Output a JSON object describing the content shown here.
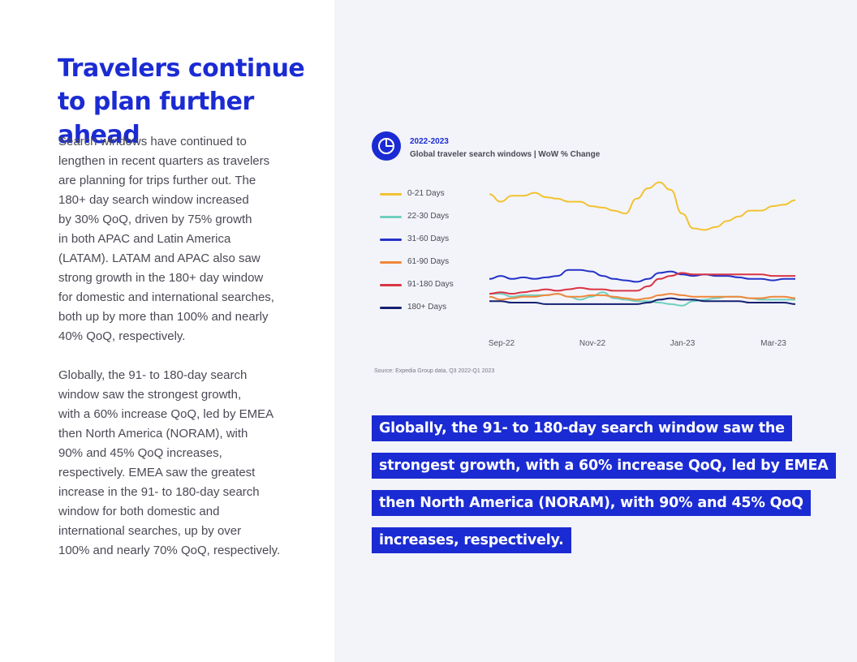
{
  "page": {
    "title": "Travelers continue to plan further ahead",
    "paragraph1": "Search windows have continued to\nlengthen in recent quarters as travelers\nare planning for trips further out. The\n180+ day search window increased\nby 30% QoQ, driven by 75% growth\nin both APAC and Latin America\n(LATAM). LATAM and APAC also saw\nstrong growth in the 180+ day window\nfor domestic and international searches,\nboth up by more than 100% and nearly\n40% QoQ, respectively.",
    "paragraph2": "Globally, the 91- to 180-day search\nwindow saw the strongest growth,\nwith a 60% increase QoQ, led by EMEA\nthen North America (NORAM), with\n90% and 45% QoQ increases,\nrespectively. EMEA saw the greatest\nincrease in the 91- to 180-day search\nwindow for both domestic and\ninternational searches, up by over\n100% and nearly 70% QoQ, respectively.",
    "callout_lines": [
      "Globally, the 91- to 180-day search window saw the",
      "strongest growth, with a 60% increase QoQ, led by EMEA",
      "then North America (NORAM), with 90% and 45% QoQ",
      "increases, respectively."
    ],
    "source": "Source: Expedia Group data, Q3 2022-Q1 2023",
    "icon": "pie-chart-icon",
    "accent_color": "#1b2bd3"
  },
  "chart_data": {
    "type": "line",
    "title": "2022-2023",
    "subtitle": "Global traveler search windows | WoW % Change",
    "x_tick_labels": [
      "Sep-22",
      "Nov-22",
      "Jan-23",
      "Mar-23"
    ],
    "legend_position": "left",
    "grid": false,
    "ylim": [
      0,
      100
    ],
    "series": [
      {
        "name": "0-21 Days",
        "color": "#f2c233",
        "values": [
          85,
          80,
          84,
          84,
          86,
          83,
          82,
          80,
          80,
          77,
          76,
          74,
          72,
          82,
          89,
          93,
          88,
          72,
          62,
          61,
          63,
          67,
          70,
          74,
          74,
          77,
          78,
          81
        ]
      },
      {
        "name": "22-30 Days",
        "color": "#71cfc0",
        "values": [
          18,
          18,
          16,
          17,
          17,
          17,
          18,
          16,
          14,
          16,
          19,
          15,
          14,
          13,
          13,
          12,
          11,
          10,
          13,
          14,
          15,
          16,
          16,
          15,
          14,
          14,
          14,
          14
        ]
      },
      {
        "name": "31-60 Days",
        "color": "#2533c9",
        "values": [
          28,
          30,
          28,
          29,
          28,
          29,
          30,
          34,
          34,
          33,
          30,
          28,
          27,
          26,
          28,
          32,
          33,
          31,
          30,
          31,
          30,
          30,
          29,
          28,
          28,
          27,
          28,
          28
        ]
      },
      {
        "name": "61-90 Days",
        "color": "#f0873a",
        "values": [
          16,
          14,
          15,
          16,
          16,
          17,
          18,
          16,
          16,
          17,
          17,
          16,
          15,
          14,
          15,
          17,
          18,
          17,
          16,
          16,
          16,
          16,
          16,
          15,
          15,
          16,
          16,
          15
        ]
      },
      {
        "name": "91-180 Days",
        "color": "#d93545",
        "values": [
          18,
          19,
          18,
          19,
          20,
          21,
          20,
          21,
          22,
          21,
          21,
          20,
          20,
          20,
          23,
          28,
          30,
          32,
          31,
          31,
          31,
          31,
          31,
          31,
          31,
          30,
          30,
          30
        ]
      },
      {
        "name": "180+ Days",
        "color": "#142171",
        "values": [
          13,
          13,
          12,
          12,
          12,
          11,
          11,
          11,
          11,
          11,
          11,
          11,
          11,
          11,
          12,
          14,
          15,
          14,
          14,
          13,
          13,
          13,
          13,
          12,
          12,
          12,
          12,
          11
        ]
      }
    ]
  }
}
